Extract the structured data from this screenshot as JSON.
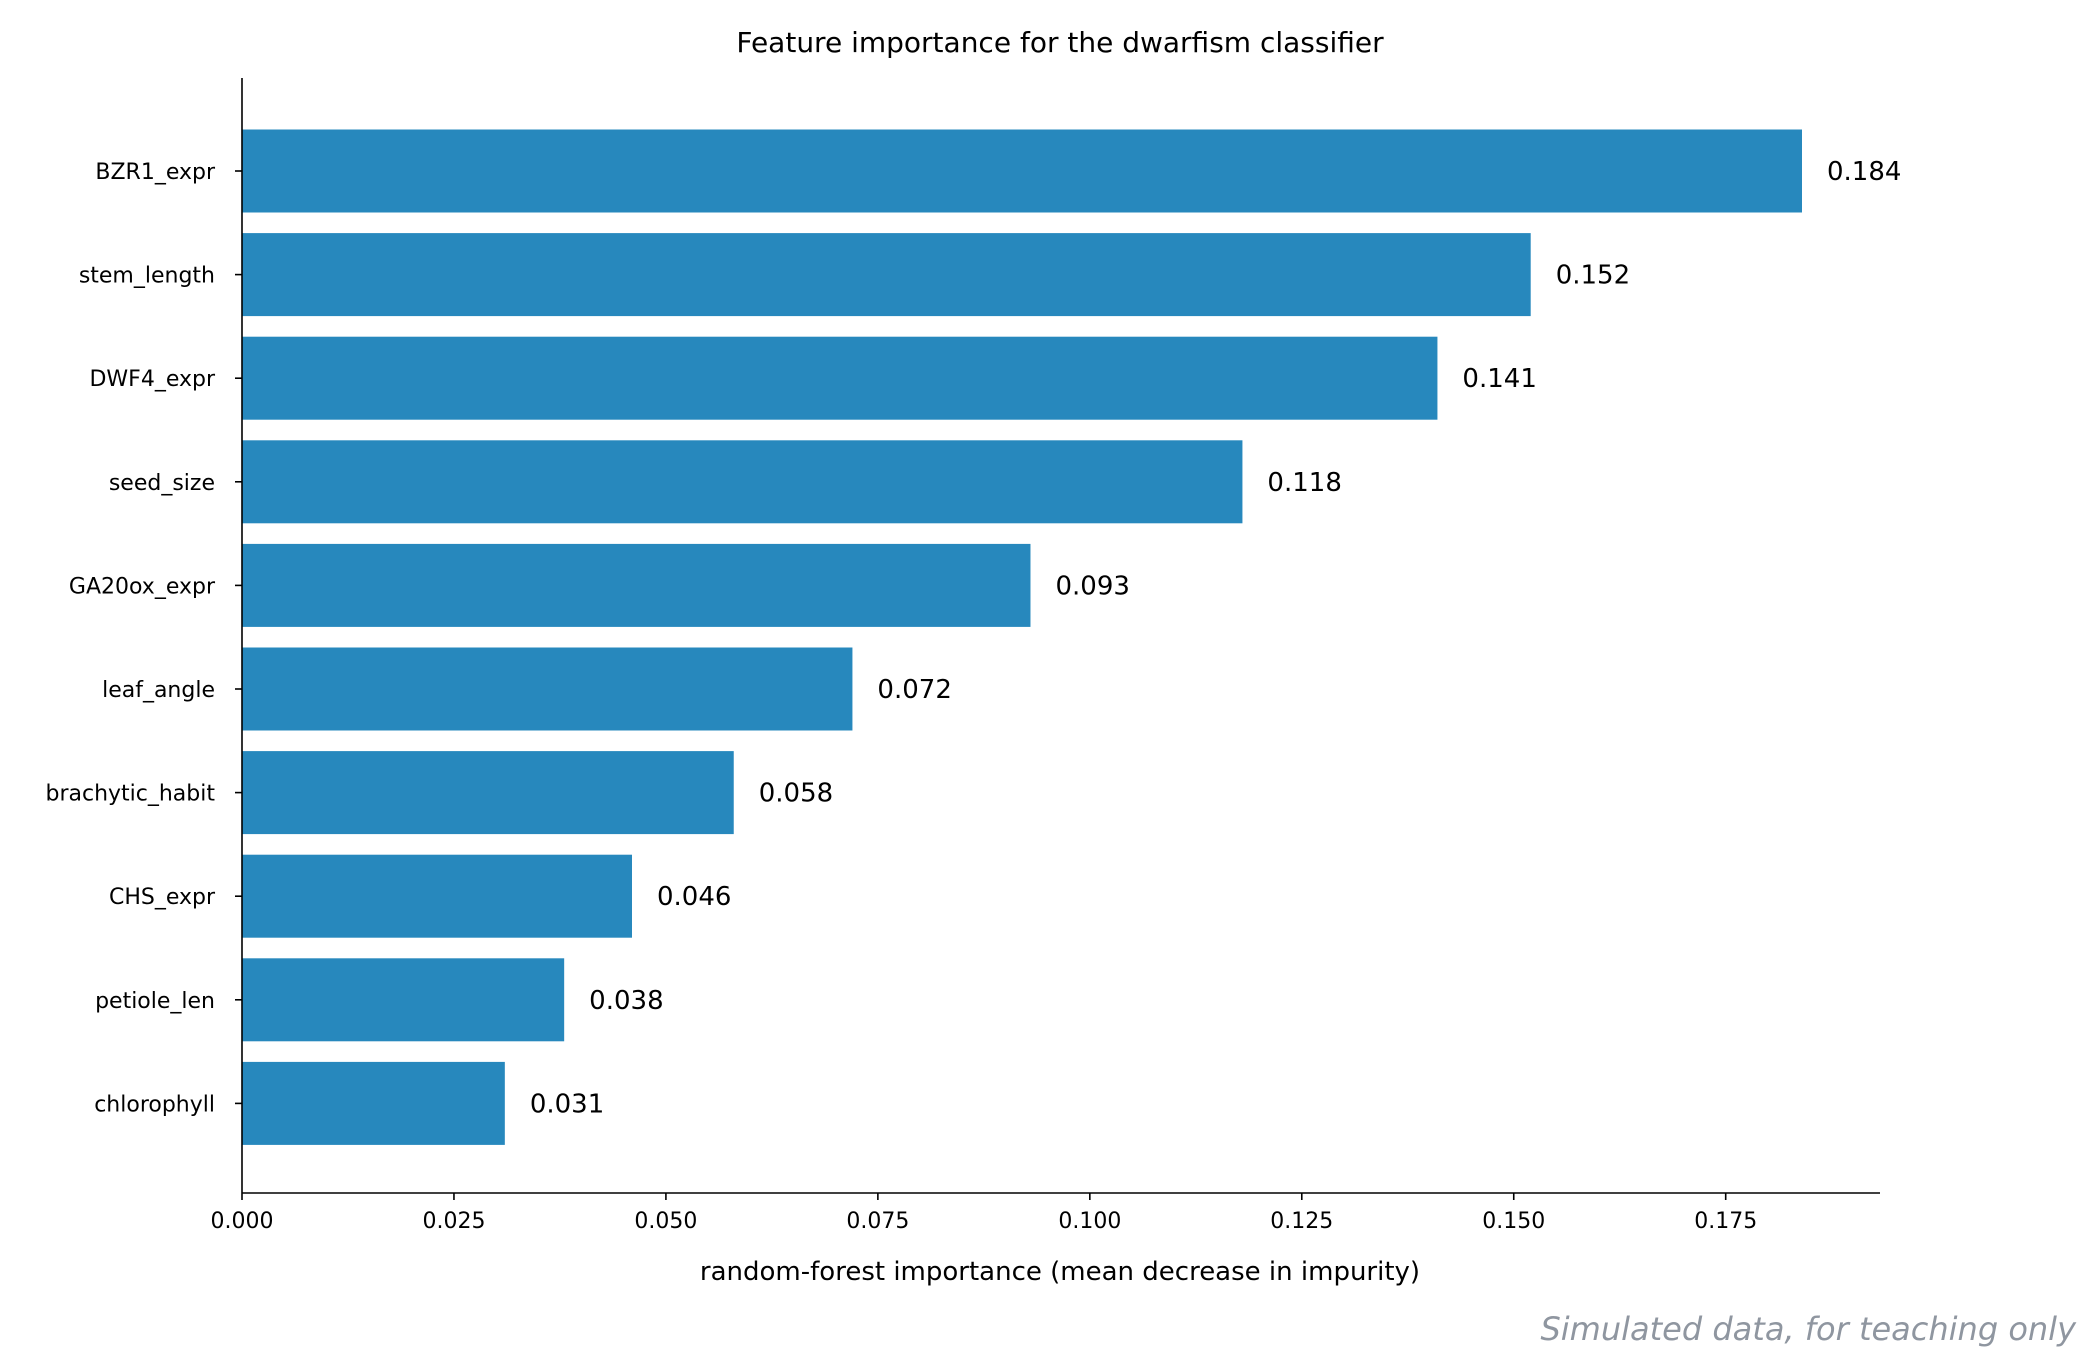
{
  "chart_data": {
    "type": "bar",
    "orientation": "horizontal",
    "title": "Feature importance for the dwarfism classifier",
    "xlabel": "random-forest importance (mean decrease in impurity)",
    "ylabel": "",
    "categories": [
      "BZR1_expr",
      "stem_length",
      "DWF4_expr",
      "seed_size",
      "GA20ox_expr",
      "leaf_angle",
      "brachytic_habit",
      "CHS_expr",
      "petiole_len",
      "chlorophyll"
    ],
    "values": [
      0.184,
      0.152,
      0.141,
      0.118,
      0.093,
      0.072,
      0.058,
      0.046,
      0.038,
      0.031
    ],
    "data_labels": [
      "0.184",
      "0.152",
      "0.141",
      "0.118",
      "0.093",
      "0.072",
      "0.058",
      "0.046",
      "0.038",
      "0.031"
    ],
    "xlim": [
      0,
      0.1932
    ],
    "xticks": [
      0,
      0.025,
      0.05,
      0.075,
      0.1,
      0.125,
      0.15,
      0.175
    ],
    "xtick_labels": [
      "0.000",
      "0.025",
      "0.050",
      "0.075",
      "0.100",
      "0.125",
      "0.150",
      "0.175"
    ],
    "bar_color": "#2788bd",
    "grid": false,
    "legend": "none",
    "watermark": "Simulated data, for teaching only"
  }
}
